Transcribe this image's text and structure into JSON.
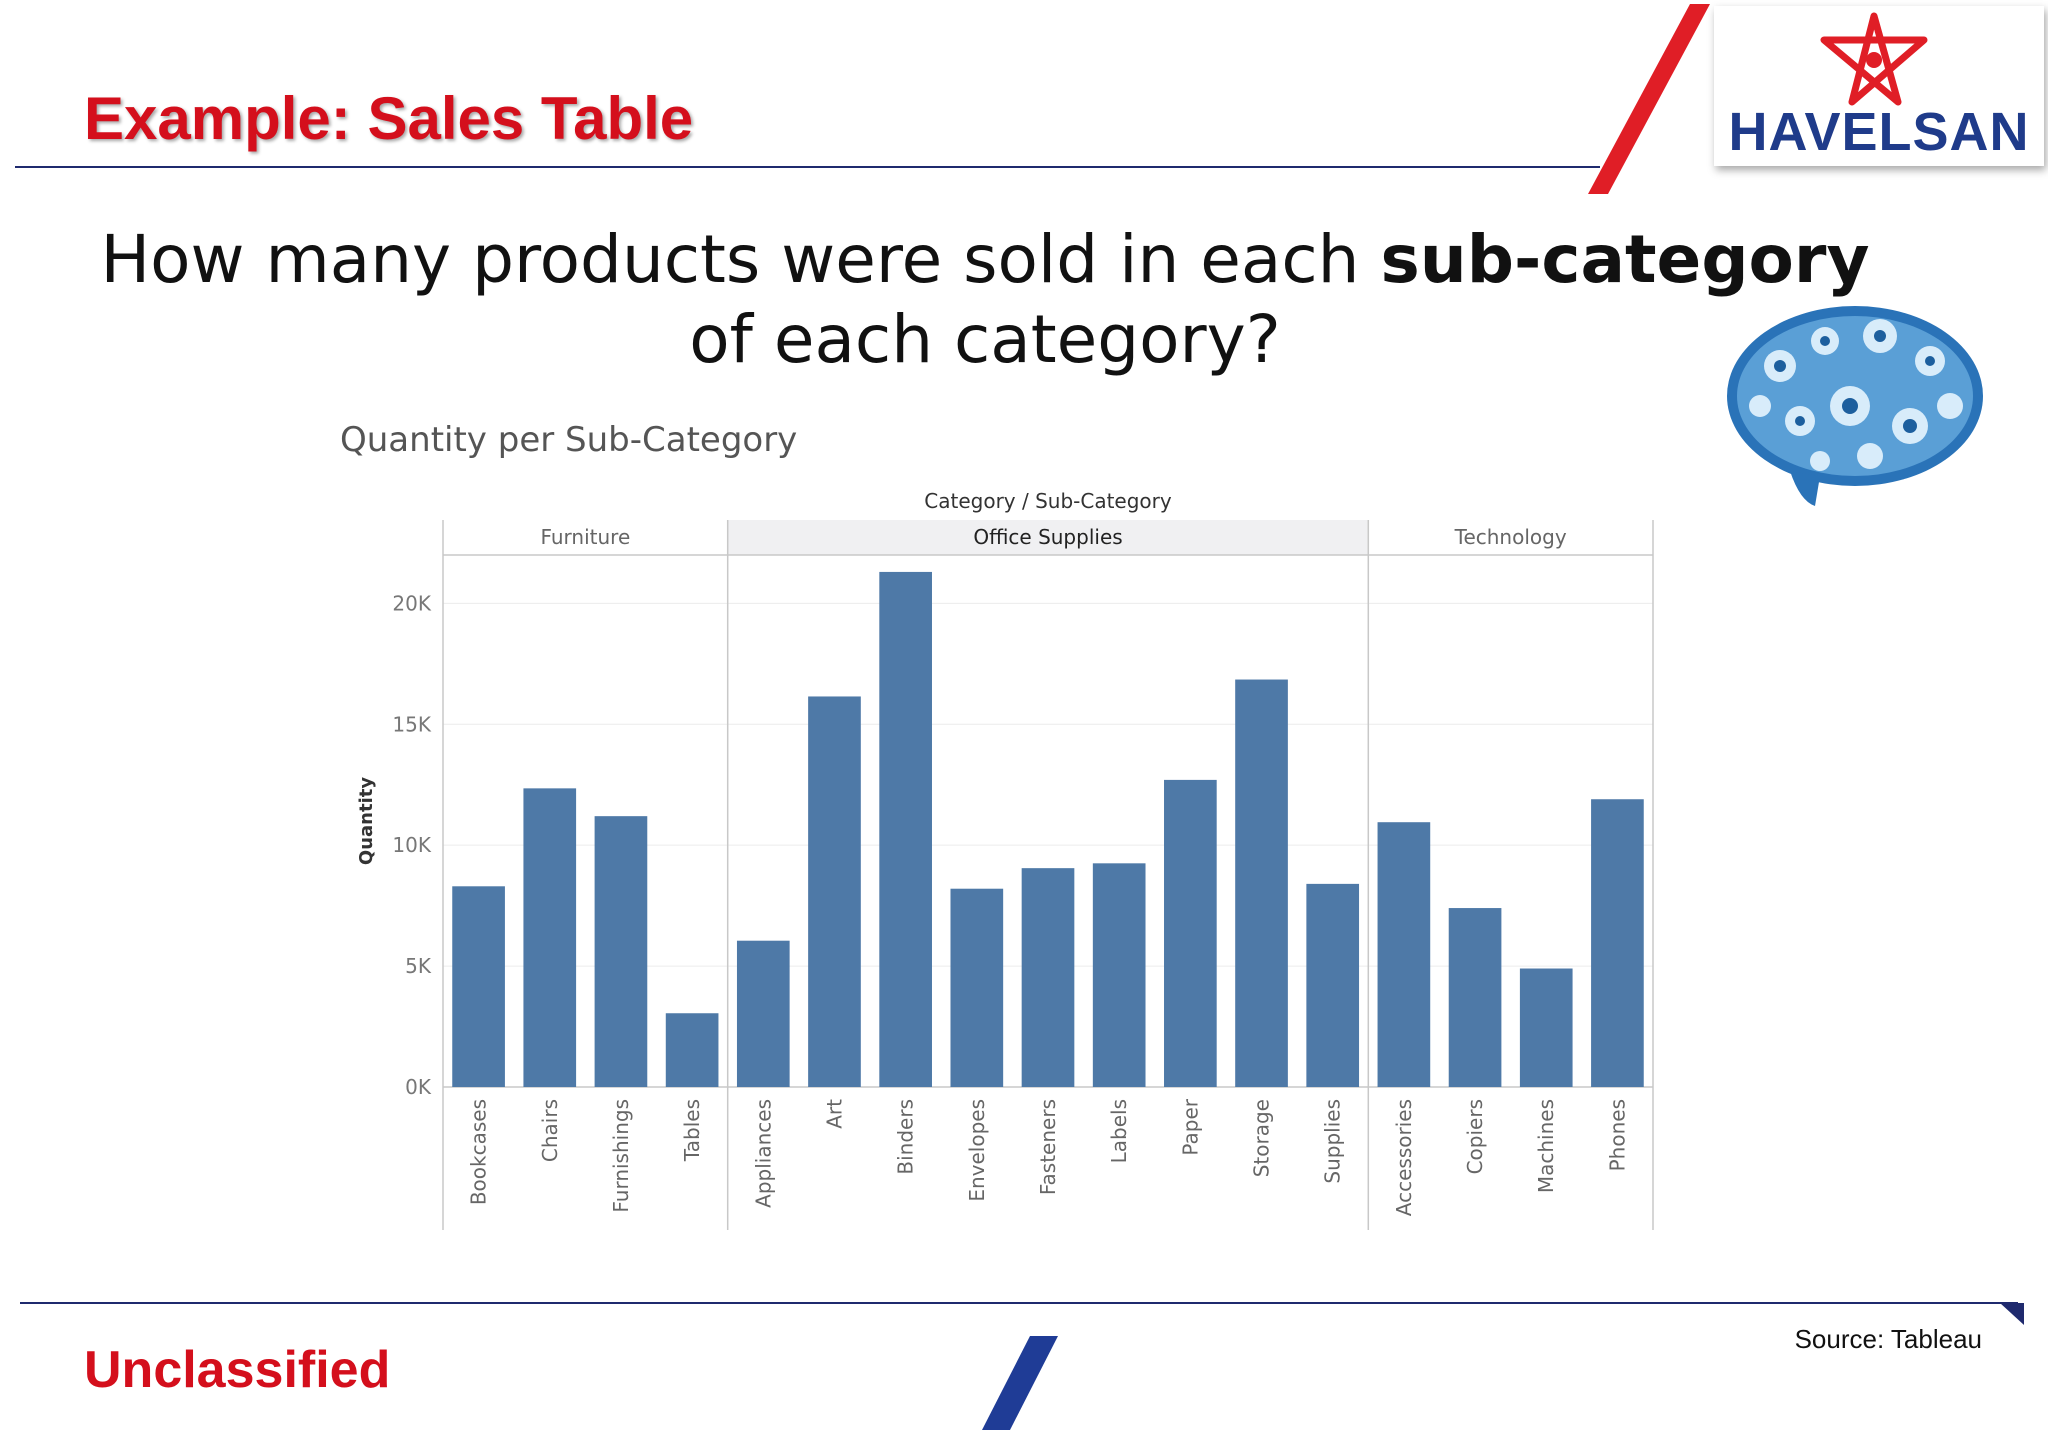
{
  "header": {
    "title": "Example: Sales Table",
    "logo_text": "HAVELSAN"
  },
  "question": {
    "before": "How many products were sold in each ",
    "bold": "sub-category",
    "after": " of each category?"
  },
  "footer": {
    "classification": "Unclassified",
    "source": "Source: Tableau"
  },
  "colors": {
    "title_red": "#d40f1c",
    "navy": "#1f2a6e",
    "bar_blue": "#4e79a7"
  },
  "chart_data": {
    "type": "bar",
    "title": "Quantity per Sub-Category",
    "header_label": "Category / Sub-Category",
    "ylabel": "Quantity",
    "ylim": [
      0,
      22000
    ],
    "yticks": [
      {
        "value": 0,
        "label": "0K"
      },
      {
        "value": 5000,
        "label": "5K"
      },
      {
        "value": 10000,
        "label": "10K"
      },
      {
        "value": 15000,
        "label": "15K"
      },
      {
        "value": 20000,
        "label": "20K"
      }
    ],
    "grid": true,
    "groups": [
      {
        "category": "Furniture",
        "items": [
          {
            "sub": "Bookcases",
            "value": 8300
          },
          {
            "sub": "Chairs",
            "value": 12350
          },
          {
            "sub": "Furnishings",
            "value": 11200
          },
          {
            "sub": "Tables",
            "value": 3050
          }
        ]
      },
      {
        "category": "Office Supplies",
        "items": [
          {
            "sub": "Appliances",
            "value": 6050
          },
          {
            "sub": "Art",
            "value": 16150
          },
          {
            "sub": "Binders",
            "value": 21300
          },
          {
            "sub": "Envelopes",
            "value": 8200
          },
          {
            "sub": "Fasteners",
            "value": 9050
          },
          {
            "sub": "Labels",
            "value": 9250
          },
          {
            "sub": "Paper",
            "value": 12700
          },
          {
            "sub": "Storage",
            "value": 16850
          },
          {
            "sub": "Supplies",
            "value": 8400
          }
        ]
      },
      {
        "category": "Technology",
        "items": [
          {
            "sub": "Accessories",
            "value": 10950
          },
          {
            "sub": "Copiers",
            "value": 7400
          },
          {
            "sub": "Machines",
            "value": 4900
          },
          {
            "sub": "Phones",
            "value": 11900
          }
        ]
      }
    ]
  }
}
